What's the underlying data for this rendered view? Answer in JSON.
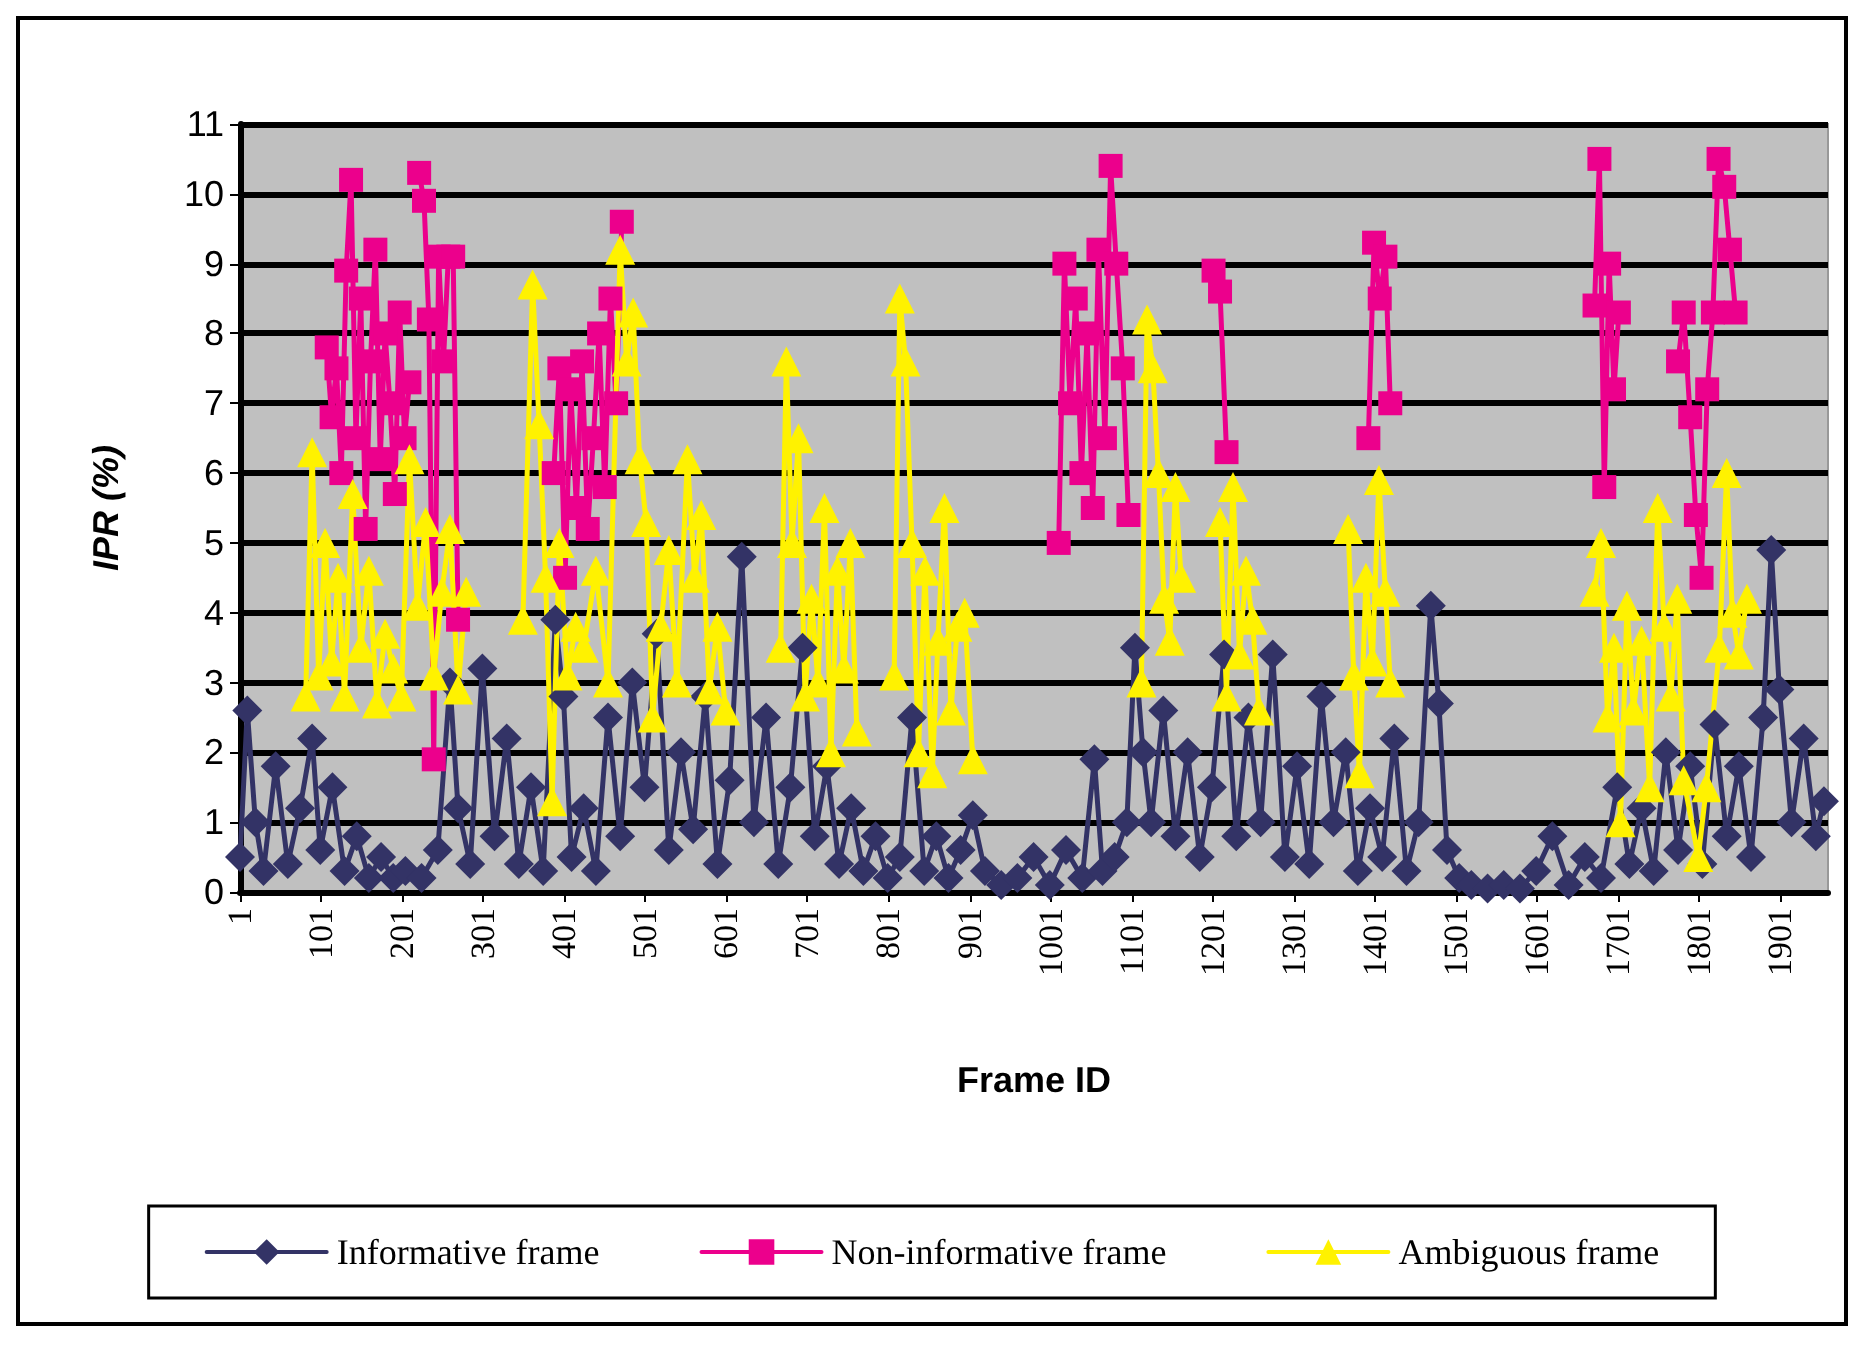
{
  "chart_data": {
    "type": "line",
    "xlabel": "Frame ID",
    "ylabel": "IPR (%)",
    "xlim": [
      1,
      1960
    ],
    "xticks": [
      1,
      101,
      201,
      301,
      401,
      501,
      601,
      701,
      801,
      901,
      1001,
      1101,
      1201,
      1301,
      1401,
      1501,
      1601,
      1701,
      1801,
      1901
    ],
    "ylim": [
      0,
      11
    ],
    "yticks": [
      0,
      1,
      2,
      3,
      4,
      5,
      6,
      7,
      8,
      9,
      10,
      11
    ],
    "grid": "y",
    "legend": "bottom",
    "line_style": "solid",
    "series": [
      {
        "name": "Informative frame",
        "color": "#333366",
        "marker": "diamond",
        "x": [
          1,
          10,
          20,
          30,
          45,
          60,
          75,
          90,
          100,
          115,
          130,
          145,
          160,
          175,
          190,
          205,
          225,
          245,
          260,
          270,
          285,
          300,
          315,
          330,
          345,
          360,
          375,
          390,
          400,
          410,
          425,
          440,
          455,
          470,
          485,
          500,
          515,
          530,
          545,
          560,
          575,
          590,
          605,
          620,
          635,
          650,
          665,
          680,
          695,
          710,
          725,
          740,
          755,
          770,
          785,
          800,
          815,
          830,
          845,
          860,
          875,
          890,
          905,
          920,
          940,
          960,
          980,
          1000,
          1020,
          1040,
          1055,
          1065,
          1080,
          1095,
          1105,
          1115,
          1125,
          1140,
          1155,
          1170,
          1185,
          1200,
          1215,
          1230,
          1245,
          1260,
          1275,
          1290,
          1305,
          1320,
          1335,
          1350,
          1365,
          1380,
          1395,
          1410,
          1425,
          1440,
          1455,
          1470,
          1480,
          1490,
          1505,
          1520,
          1540,
          1560,
          1580,
          1600,
          1620,
          1640,
          1660,
          1680,
          1700,
          1715,
          1730,
          1745,
          1760,
          1775,
          1790,
          1805,
          1820,
          1835,
          1850,
          1865,
          1880,
          1890,
          1900,
          1915,
          1930,
          1945,
          1955
        ],
        "values": [
          0.5,
          2.6,
          1.0,
          0.3,
          1.8,
          0.4,
          1.2,
          2.2,
          0.6,
          1.5,
          0.3,
          0.8,
          0.2,
          0.5,
          0.2,
          0.3,
          0.2,
          0.6,
          3.0,
          1.2,
          0.4,
          3.2,
          0.8,
          2.2,
          0.4,
          1.5,
          0.3,
          3.9,
          2.8,
          0.5,
          1.2,
          0.3,
          2.5,
          0.8,
          3.0,
          1.5,
          3.7,
          0.6,
          2.0,
          0.9,
          2.8,
          0.4,
          1.6,
          4.8,
          1.0,
          2.5,
          0.4,
          1.5,
          3.5,
          0.8,
          1.8,
          0.4,
          1.2,
          0.3,
          0.8,
          0.2,
          0.5,
          2.5,
          0.3,
          0.8,
          0.2,
          0.6,
          1.1,
          0.3,
          0.1,
          0.2,
          0.5,
          0.1,
          0.6,
          0.2,
          1.9,
          0.3,
          0.5,
          1.0,
          3.5,
          2.0,
          1.0,
          2.6,
          0.8,
          2.0,
          0.5,
          1.5,
          3.4,
          0.8,
          2.5,
          1.0,
          3.4,
          0.5,
          1.8,
          0.4,
          2.8,
          1.0,
          2.0,
          0.3,
          1.2,
          0.5,
          2.2,
          0.3,
          1.0,
          4.1,
          2.7,
          0.6,
          0.2,
          0.1,
          0.05,
          0.1,
          0.05,
          0.3,
          0.8,
          0.1,
          0.5,
          0.2,
          1.5,
          0.4,
          1.2,
          0.3,
          2.0,
          0.6,
          1.8,
          0.4,
          2.4,
          0.8,
          1.8,
          0.5,
          2.5,
          4.9,
          2.9,
          1.0,
          2.2,
          0.8,
          1.3
        ]
      },
      {
        "name": "Non-informative frame",
        "color": "#ec008c",
        "marker": "square",
        "x": [
          108,
          114,
          120,
          126,
          132,
          138,
          144,
          150,
          156,
          162,
          168,
          174,
          180,
          186,
          192,
          198,
          204,
          210,
          215,
          222,
          228,
          234,
          240,
          246,
          252,
          258,
          264,
          270,
          280,
          388,
          395,
          402,
          409,
          416,
          423,
          430,
          437,
          444,
          451,
          458,
          465,
          472,
          480,
          1011,
          1018,
          1025,
          1032,
          1039,
          1046,
          1053,
          1060,
          1068,
          1075,
          1082,
          1090,
          1097,
          1105,
          1202,
          1210,
          1218,
          1230,
          1393,
          1400,
          1407,
          1414,
          1420,
          1430,
          1672,
          1678,
          1684,
          1690,
          1696,
          1702,
          1710,
          1775,
          1782,
          1790,
          1797,
          1804,
          1811,
          1818,
          1825,
          1832,
          1839,
          1846
        ],
        "values": [
          7.8,
          6.8,
          7.5,
          6.0,
          8.9,
          10.2,
          6.5,
          8.5,
          5.2,
          7.6,
          9.2,
          6.2,
          8.0,
          7.0,
          5.7,
          8.3,
          6.5,
          7.3,
          null,
          10.3,
          9.9,
          8.2,
          1.9,
          9.1,
          7.6,
          9.1,
          9.1,
          3.9,
          null,
          6.0,
          7.5,
          4.5,
          7.2,
          5.5,
          7.6,
          5.2,
          6.5,
          8.0,
          5.8,
          8.5,
          7.0,
          9.6,
          null,
          5.0,
          9.0,
          7.0,
          8.5,
          6.0,
          8.0,
          5.5,
          9.2,
          6.5,
          10.4,
          9.0,
          7.5,
          5.4,
          null,
          8.9,
          8.6,
          6.3,
          null,
          6.5,
          9.3,
          8.5,
          9.1,
          7.0,
          null,
          8.4,
          10.5,
          5.8,
          9.0,
          7.2,
          8.3,
          null,
          7.6,
          8.3,
          6.8,
          5.4,
          4.5,
          7.2,
          8.3,
          10.5,
          10.1,
          9.2,
          8.3
        ]
      },
      {
        "name": "Ambiguous frame",
        "color": "#fff200",
        "marker": "triangle",
        "x": [
          82,
          90,
          98,
          106,
          114,
          122,
          130,
          140,
          150,
          160,
          170,
          180,
          190,
          200,
          210,
          220,
          230,
          240,
          250,
          260,
          270,
          280,
          290,
          350,
          362,
          370,
          378,
          386,
          395,
          405,
          415,
          425,
          440,
          455,
          470,
          478,
          486,
          494,
          502,
          510,
          520,
          530,
          540,
          553,
          562,
          570,
          580,
          590,
          600,
          620,
          668,
          675,
          682,
          690,
          698,
          706,
          714,
          722,
          730,
          738,
          746,
          754,
          762,
          775,
          808,
          815,
          822,
          830,
          838,
          846,
          855,
          862,
          870,
          878,
          886,
          895,
          905,
          915,
          1113,
          1120,
          1127,
          1134,
          1141,
          1148,
          1155,
          1162,
          1175,
          1210,
          1218,
          1226,
          1234,
          1242,
          1250,
          1258,
          1270,
          1368,
          1375,
          1382,
          1390,
          1398,
          1406,
          1414,
          1420,
          1430,
          1672,
          1680,
          1688,
          1696,
          1704,
          1712,
          1720,
          1730,
          1740,
          1750,
          1758,
          1766,
          1774,
          1782,
          1800,
          1810,
          1826,
          1835,
          1842,
          1850,
          1860
        ],
        "values": [
          2.8,
          6.3,
          3.1,
          5.0,
          3.3,
          4.5,
          2.8,
          5.7,
          3.5,
          4.6,
          2.7,
          3.7,
          3.2,
          2.8,
          6.2,
          4.1,
          5.3,
          3.1,
          4.3,
          5.2,
          2.9,
          4.3,
          null,
          3.9,
          8.7,
          6.7,
          4.5,
          1.3,
          5.0,
          3.1,
          3.8,
          3.5,
          4.6,
          3.0,
          9.2,
          7.6,
          8.3,
          6.2,
          5.3,
          2.5,
          3.8,
          4.9,
          3.0,
          6.2,
          4.5,
          5.4,
          2.9,
          3.8,
          2.6,
          null,
          3.5,
          7.6,
          5.0,
          6.5,
          2.8,
          4.2,
          3.0,
          5.5,
          2.0,
          4.6,
          3.2,
          5.0,
          2.3,
          null,
          3.1,
          8.5,
          7.6,
          5.0,
          2.0,
          4.6,
          1.7,
          3.6,
          5.5,
          2.6,
          3.8,
          4.0,
          1.9,
          null,
          3.0,
          8.2,
          7.5,
          6.0,
          4.2,
          3.6,
          5.8,
          4.5,
          null,
          5.3,
          2.8,
          5.8,
          3.4,
          4.6,
          3.9,
          2.6,
          null,
          5.2,
          3.1,
          1.7,
          4.5,
          3.3,
          5.9,
          4.3,
          3.0,
          null,
          4.3,
          5.0,
          2.5,
          3.5,
          1.0,
          4.1,
          2.6,
          3.6,
          1.5,
          5.5,
          3.8,
          2.8,
          4.2,
          1.6,
          0.5,
          1.5,
          3.5,
          6.0,
          4.0,
          3.4,
          4.2
        ]
      }
    ]
  }
}
